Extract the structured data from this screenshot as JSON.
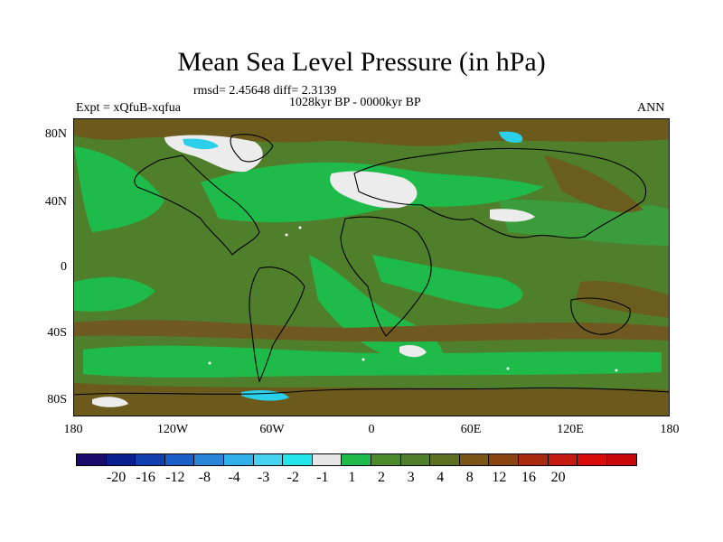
{
  "title": "Mean Sea Level Pressure (in hPa)",
  "stats": "rmsd= 2.45648 diff= 2.3139",
  "experiment": "Expt = xQfuB-xqfua",
  "period": "1028kyr BP - 0000kyr BP",
  "season": "ANN",
  "lat_labels": [
    "80N",
    "40N",
    "0",
    "40S",
    "80S"
  ],
  "lon_labels": [
    "180",
    "120W",
    "60W",
    "0",
    "60E",
    "120E",
    "180"
  ],
  "colorbar": {
    "colors": [
      "#1a0a6b",
      "#0a1f8f",
      "#1040b0",
      "#1a5ec8",
      "#2a84d8",
      "#2fb0e8",
      "#45d2f0",
      "#22e6ea",
      "#e6e6e6",
      "#1fbb4a",
      "#4a8a2a",
      "#4f7f2b",
      "#5c6e1f",
      "#7a5518",
      "#8a4412",
      "#a82b10",
      "#c41a10",
      "#d80a0a",
      "#c80808"
    ],
    "labels": [
      "-20",
      "-16",
      "-12",
      "-8",
      "-4",
      "-3",
      "-2",
      "-1",
      "1",
      "2",
      "3",
      "4",
      "8",
      "12",
      "16",
      "20"
    ]
  }
}
